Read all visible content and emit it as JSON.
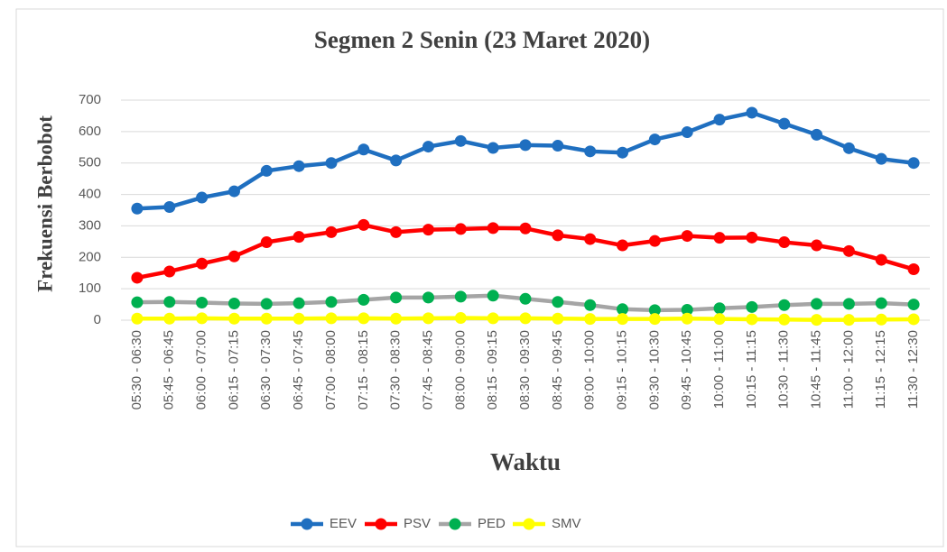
{
  "chart_data": {
    "type": "line",
    "title": "Segmen 2 Senin (23 Maret 2020)",
    "x_label": "Waktu",
    "y_label": "Frekuensi Berbobot",
    "categories": [
      "05:30 - 06:30",
      "05:45 - 06:45",
      "06:00 - 07:00",
      "06:15 - 07:15",
      "06:30 - 07:30",
      "06:45 - 07:45",
      "07:00 - 08:00",
      "07:15 - 08:15",
      "07:30 - 08:30",
      "07:45 - 08:45",
      "08:00 - 09:00",
      "08:15 - 09:15",
      "08:30 - 09:30",
      "08:45 - 09:45",
      "09:00 - 10:00",
      "09:15 - 10:15",
      "09:30 - 10:30",
      "09:45 - 10:45",
      "10:00 - 11:00",
      "10:15 - 11:15",
      "10:30 - 11:30",
      "10:45 - 11:45",
      "11:00 - 12:00",
      "11:15 - 12:15",
      "11:30 - 12:30"
    ],
    "series": [
      {
        "name": "EEV",
        "color": "#1f6fc0",
        "values": [
          355,
          360,
          390,
          410,
          475,
          490,
          500,
          543,
          508,
          552,
          570,
          548,
          557,
          555,
          537,
          533,
          575,
          598,
          638,
          660,
          625,
          590,
          547,
          513,
          500
        ]
      },
      {
        "name": "PSV",
        "color": "#ff0000",
        "values": [
          135,
          155,
          180,
          203,
          248,
          265,
          280,
          303,
          280,
          288,
          290,
          293,
          292,
          270,
          258,
          238,
          252,
          268,
          262,
          263,
          248,
          238,
          220,
          192,
          162
        ]
      },
      {
        "name": "PED",
        "color": "#a5a5a5",
        "marker_color": "#00b050",
        "values": [
          57,
          58,
          56,
          53,
          52,
          54,
          58,
          65,
          72,
          72,
          75,
          78,
          68,
          58,
          48,
          35,
          32,
          33,
          38,
          42,
          48,
          52,
          52,
          54,
          50
        ]
      },
      {
        "name": "SMV",
        "color": "#ffff00",
        "values": [
          5,
          5,
          6,
          5,
          5,
          5,
          6,
          6,
          5,
          6,
          7,
          6,
          6,
          5,
          4,
          4,
          4,
          5,
          4,
          3,
          2,
          1,
          1,
          2,
          3
        ]
      }
    ],
    "ylim": [
      0,
      700
    ],
    "yticks": [
      0,
      100,
      200,
      300,
      400,
      500,
      600,
      700
    ],
    "grid": true,
    "legend": "bottom"
  }
}
